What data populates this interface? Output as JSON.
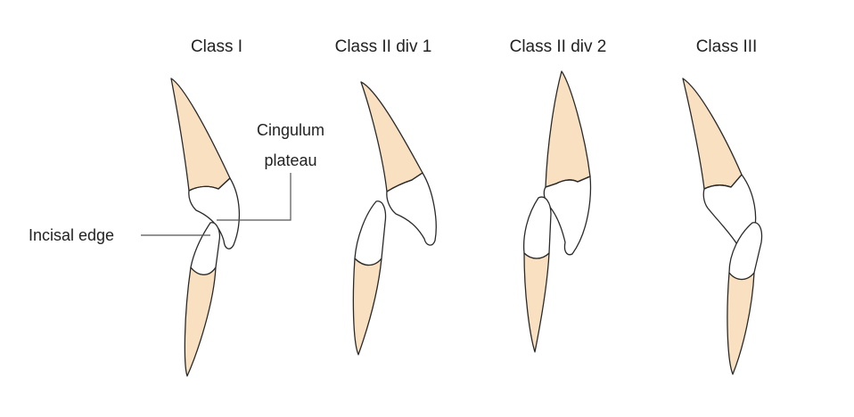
{
  "classes": [
    {
      "label": "Class I"
    },
    {
      "label": "Class II div 1"
    },
    {
      "label": "Class II div 2"
    },
    {
      "label": "Class III"
    }
  ],
  "annotations": {
    "cingulum_line1": "Cingulum",
    "cingulum_line2": "plateau",
    "incisal_edge": "Incisal edge"
  },
  "colors": {
    "root_fill": "#f9e0c0",
    "crown_fill": "#ffffff",
    "outline": "#2a2a2a"
  }
}
